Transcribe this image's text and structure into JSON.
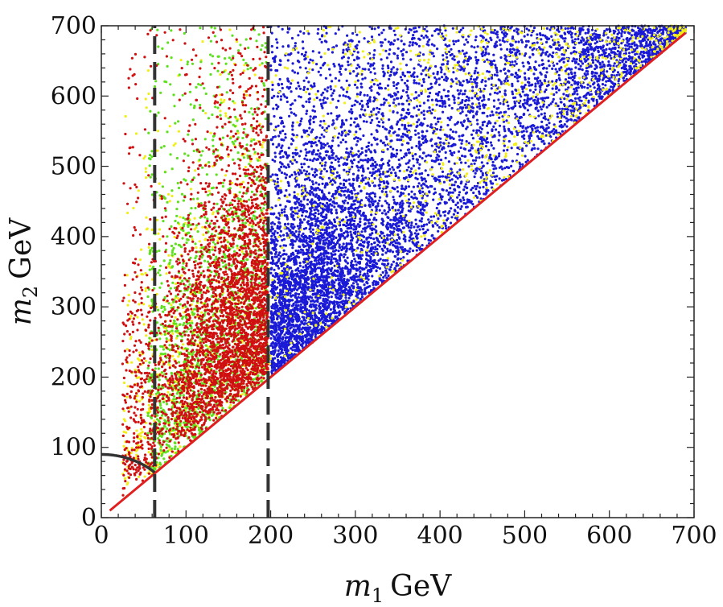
{
  "chart_data": {
    "type": "scatter",
    "title": "",
    "xlabel": {
      "var": "m",
      "sub": "1",
      "unit": "GeV"
    },
    "ylabel": {
      "var": "m",
      "sub": "2",
      "unit": "GeV"
    },
    "xlim": [
      0,
      700
    ],
    "ylim": [
      0,
      700
    ],
    "xticks": [
      0,
      100,
      200,
      300,
      400,
      500,
      600,
      700
    ],
    "yticks": [
      0,
      100,
      200,
      300,
      400,
      500,
      600,
      700
    ],
    "xtick_labels": [
      "0",
      "100",
      "200",
      "300",
      "400",
      "500",
      "600",
      "700"
    ],
    "ytick_labels": [
      "0",
      "100",
      "200",
      "300",
      "400",
      "500",
      "600",
      "700"
    ],
    "grid": false,
    "legend": "none",
    "series": [
      {
        "color": "#1a1ad6",
        "region": "m1 200-700, m2 >= m1",
        "n_points": 7000
      },
      {
        "color": "#d01010",
        "region": "m1 50-200, m2 >= m1, concentrated near m2 approx 150-450",
        "n_points": 3600
      },
      {
        "color": "#5ee01e",
        "region": "m1 50-200, m2 >= m1",
        "n_points": 1500
      },
      {
        "color": "#f2ee18",
        "region": "m1 20-700, m2 >= m1, sparse",
        "n_points": 1400
      }
    ],
    "reference_lines": [
      {
        "kind": "diagonal",
        "x": [
          10,
          690
        ],
        "y": [
          10,
          690
        ],
        "color": "#e02020"
      },
      {
        "kind": "vertical-dashed",
        "x": 63,
        "color": "#333333"
      },
      {
        "kind": "vertical-dashed",
        "x": 197,
        "color": "#333333"
      },
      {
        "kind": "arc",
        "radius": 90,
        "x_range": [
          0,
          63
        ],
        "color": "#333333"
      }
    ]
  }
}
